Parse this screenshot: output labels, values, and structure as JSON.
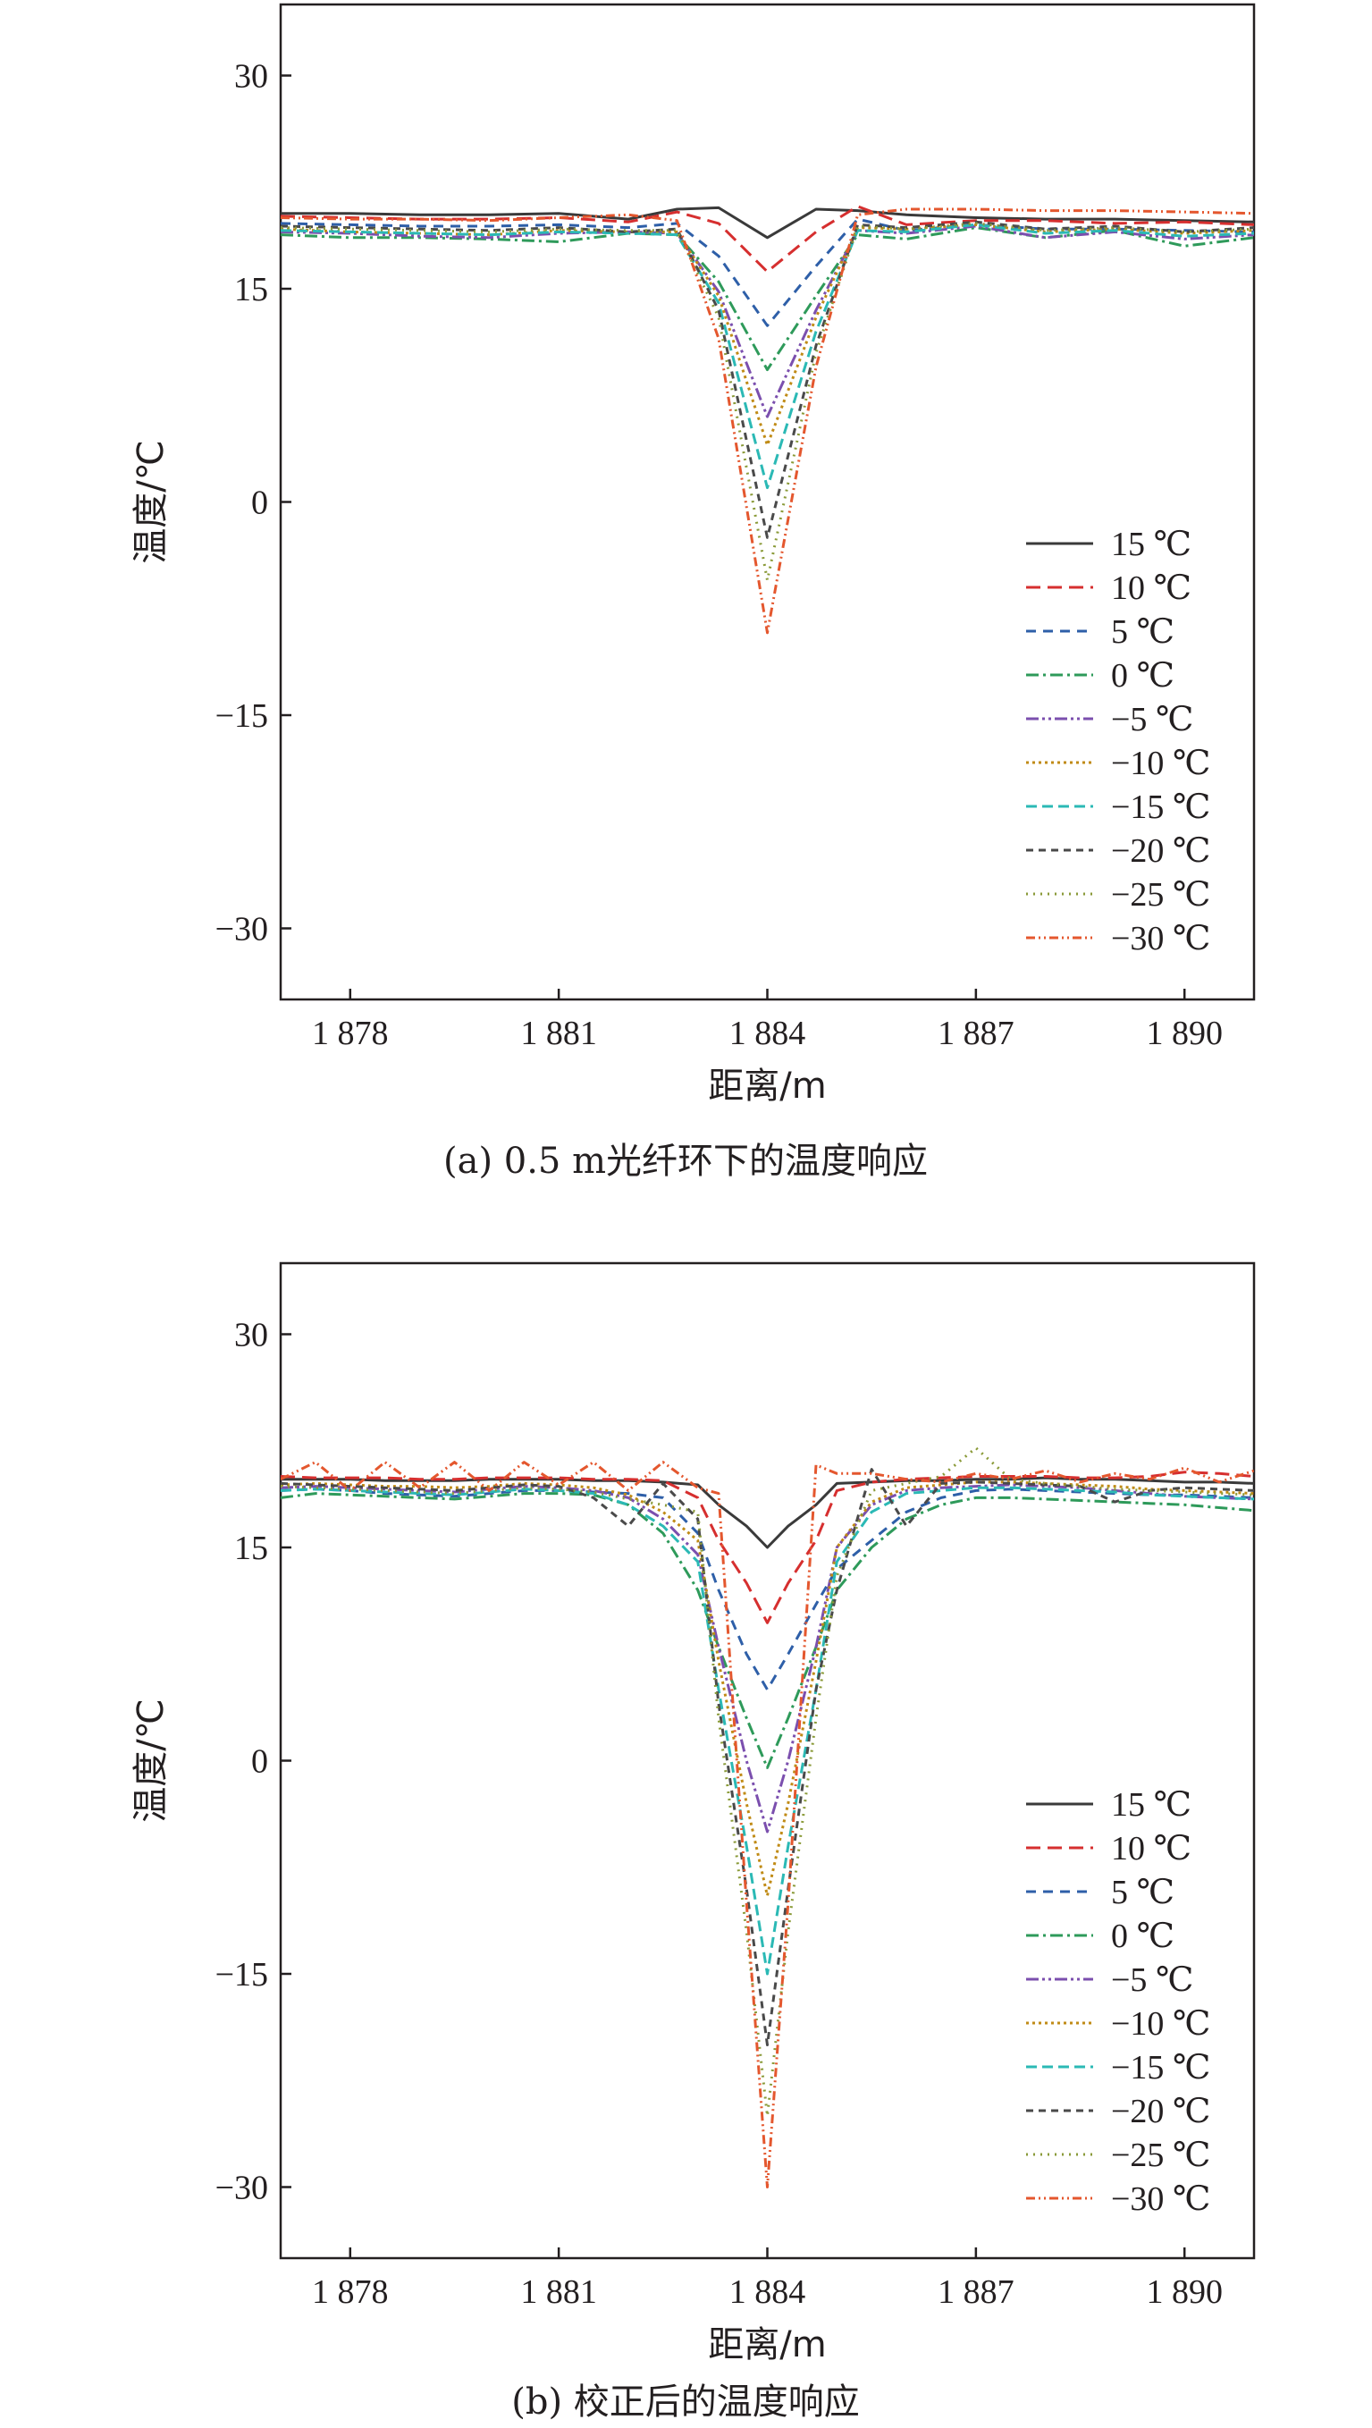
{
  "chart_data": [
    {
      "type": "line",
      "caption": "(a) 0.5 m光纤环下的温度响应",
      "xlabel": "距离/m",
      "ylabel": "温度/℃",
      "xlim": [
        1877,
        1891
      ],
      "ylim": [
        -35,
        35
      ],
      "xticks": [
        1878,
        1881,
        1884,
        1887,
        1890
      ],
      "xtick_labels": [
        "1 878",
        "1 881",
        "1 884",
        "1 887",
        "1 890"
      ],
      "yticks": [
        30,
        15,
        0,
        -15,
        -30
      ],
      "ytick_labels": [
        "30",
        "15",
        "0",
        "−15",
        "−30"
      ],
      "legend_position": "lower-right",
      "grid": false,
      "x": [
        1877,
        1878,
        1879,
        1880,
        1881,
        1882,
        1882.7,
        1883.3,
        1884,
        1884.7,
        1885.3,
        1886,
        1887,
        1888,
        1889,
        1890,
        1891
      ],
      "series": [
        {
          "name": "15 ℃",
          "color": "#3a3a3a",
          "dash": "",
          "values": [
            20.3,
            20.3,
            20.2,
            20.2,
            20.3,
            19.9,
            20.6,
            20.7,
            18.6,
            20.6,
            20.5,
            20.2,
            20.0,
            19.9,
            19.9,
            19.8,
            19.7
          ]
        },
        {
          "name": "10 ℃",
          "color": "#d62f2f",
          "dash": "16,8",
          "values": [
            20.1,
            20.0,
            19.9,
            19.9,
            20.0,
            19.7,
            20.4,
            19.6,
            16.2,
            19.0,
            20.8,
            19.5,
            19.8,
            19.8,
            19.6,
            19.7,
            19.5
          ]
        },
        {
          "name": "5 ℃",
          "color": "#2e5fa8",
          "dash": "11,8",
          "values": [
            19.6,
            19.5,
            19.4,
            19.4,
            19.5,
            19.3,
            19.6,
            17.3,
            12.4,
            16.6,
            19.9,
            19.1,
            19.5,
            19.2,
            19.2,
            19.1,
            19.0
          ]
        },
        {
          "name": "0 ℃",
          "color": "#2e9a5a",
          "dash": "14,5,3,5",
          "values": [
            18.8,
            18.6,
            18.6,
            18.5,
            18.3,
            18.9,
            18.8,
            15.5,
            9.3,
            14.5,
            18.8,
            18.5,
            19.3,
            18.6,
            19.1,
            18.0,
            18.6
          ]
        },
        {
          "name": "−5 ℃",
          "color": "#7b4fae",
          "dash": "14,4,3,4,3,4",
          "values": [
            19.0,
            18.9,
            18.7,
            18.6,
            18.9,
            19.0,
            18.9,
            14.8,
            6.0,
            13.5,
            19.1,
            18.9,
            19.4,
            18.6,
            19.0,
            18.5,
            18.8
          ]
        },
        {
          "name": "−10 ℃",
          "color": "#c08b16",
          "dash": "3,4",
          "values": [
            19.2,
            19.0,
            18.9,
            18.8,
            19.1,
            19.0,
            19.0,
            14.5,
            4.0,
            13.0,
            19.3,
            19.2,
            19.5,
            19.0,
            19.2,
            18.9,
            19.1
          ]
        },
        {
          "name": "−15 ℃",
          "color": "#2bb9b5",
          "dash": "12,6",
          "values": [
            19.1,
            19.0,
            18.9,
            18.8,
            19.0,
            18.9,
            18.8,
            14.0,
            1.0,
            12.0,
            19.1,
            19.0,
            19.5,
            18.9,
            19.1,
            18.7,
            18.9
          ]
        },
        {
          "name": "−20 ℃",
          "color": "#4a4a4a",
          "dash": "8,6",
          "values": [
            19.4,
            19.3,
            19.2,
            19.1,
            19.3,
            19.0,
            19.2,
            13.5,
            -2.5,
            11.0,
            19.5,
            19.3,
            19.7,
            19.2,
            19.4,
            19.0,
            19.3
          ]
        },
        {
          "name": "−25 ℃",
          "color": "#8a9a38",
          "dash": "2,6",
          "values": [
            19.3,
            19.2,
            19.1,
            19.0,
            19.2,
            19.1,
            19.1,
            13.0,
            -5.5,
            10.5,
            19.4,
            19.2,
            19.6,
            19.1,
            19.3,
            19.0,
            19.2
          ]
        },
        {
          "name": "−30 ℃",
          "color": "#e4572e",
          "dash": "10,4,2,4,2,4",
          "values": [
            20.0,
            19.9,
            19.9,
            19.8,
            20.0,
            20.2,
            19.8,
            11.5,
            -9.2,
            9.5,
            20.2,
            20.6,
            20.6,
            20.5,
            20.5,
            20.4,
            20.3
          ]
        }
      ]
    },
    {
      "type": "line",
      "caption": "(b) 校正后的温度响应",
      "xlabel": "距离/m",
      "ylabel": "温度/℃",
      "xlim": [
        1877,
        1891
      ],
      "ylim": [
        -35,
        35
      ],
      "xticks": [
        1878,
        1881,
        1884,
        1887,
        1890
      ],
      "xtick_labels": [
        "1 878",
        "1 881",
        "1 884",
        "1 887",
        "1 890"
      ],
      "yticks": [
        30,
        15,
        0,
        -15,
        -30
      ],
      "ytick_labels": [
        "30",
        "15",
        "0",
        "−15",
        "−30"
      ],
      "legend_position": "lower-right",
      "grid": false,
      "x": [
        1877,
        1877.5,
        1878,
        1878.5,
        1879,
        1879.5,
        1880,
        1880.5,
        1881,
        1881.5,
        1882,
        1882.5,
        1883,
        1883.3,
        1883.7,
        1884,
        1884.3,
        1884.7,
        1885,
        1885.5,
        1886,
        1886.5,
        1887,
        1887.5,
        1888,
        1888.5,
        1889,
        1889.5,
        1890,
        1890.5,
        1891
      ],
      "series": [
        {
          "name": "15 ℃",
          "color": "#3a3a3a",
          "dash": "",
          "values": [
            19.8,
            19.8,
            19.8,
            19.7,
            19.7,
            19.7,
            19.8,
            19.8,
            19.8,
            19.7,
            19.7,
            19.6,
            19.4,
            18.0,
            16.5,
            15.0,
            16.5,
            18.0,
            19.5,
            19.6,
            19.7,
            19.7,
            19.8,
            19.8,
            19.9,
            19.8,
            19.8,
            19.7,
            19.6,
            19.6,
            19.5
          ]
        },
        {
          "name": "10 ℃",
          "color": "#d62f2f",
          "dash": "16,8",
          "values": [
            20.0,
            19.9,
            19.9,
            19.9,
            19.8,
            19.8,
            19.9,
            19.9,
            19.9,
            19.8,
            19.8,
            19.7,
            18.5,
            15.5,
            12.5,
            9.7,
            12.5,
            15.5,
            19.0,
            19.6,
            19.8,
            19.9,
            20.0,
            20.0,
            20.0,
            19.9,
            19.9,
            20.0,
            20.3,
            20.2,
            20.0
          ]
        },
        {
          "name": "5 ℃",
          "color": "#2e5fa8",
          "dash": "11,8",
          "values": [
            19.0,
            19.1,
            19.0,
            18.8,
            18.7,
            18.6,
            18.8,
            19.0,
            19.0,
            18.9,
            18.8,
            18.5,
            16.0,
            12.0,
            7.5,
            5.0,
            7.5,
            11.0,
            13.5,
            15.5,
            17.5,
            18.5,
            19.0,
            19.1,
            19.0,
            18.9,
            18.8,
            18.7,
            18.7,
            18.6,
            18.5
          ]
        },
        {
          "name": "0 ℃",
          "color": "#2e9a5a",
          "dash": "14,5,3,5",
          "values": [
            18.5,
            18.8,
            18.7,
            18.6,
            18.5,
            18.4,
            18.6,
            18.8,
            18.8,
            18.7,
            18.0,
            16.0,
            12.0,
            8.0,
            3.0,
            -0.5,
            3.0,
            8.0,
            12.0,
            15.0,
            17.0,
            18.0,
            18.5,
            18.5,
            18.4,
            18.3,
            18.2,
            18.1,
            18.0,
            17.8,
            17.6
          ]
        },
        {
          "name": "−5 ℃",
          "color": "#7b4fae",
          "dash": "14,4,3,4,3,4",
          "values": [
            19.2,
            19.3,
            19.2,
            19.1,
            19.0,
            18.9,
            19.1,
            19.3,
            19.2,
            19.0,
            18.5,
            17.0,
            14.5,
            8.0,
            0.0,
            -5.0,
            0.0,
            8.0,
            15.0,
            18.0,
            19.0,
            19.2,
            19.3,
            19.4,
            19.3,
            19.2,
            19.0,
            18.8,
            18.6,
            18.5,
            18.4
          ]
        },
        {
          "name": "−10 ℃",
          "color": "#c08b16",
          "dash": "3,4",
          "values": [
            19.4,
            19.5,
            19.4,
            19.3,
            19.3,
            19.2,
            19.3,
            19.5,
            19.4,
            19.2,
            18.7,
            17.5,
            15.5,
            7.0,
            -3.0,
            -9.5,
            -3.0,
            7.0,
            15.0,
            18.2,
            19.2,
            19.4,
            19.6,
            19.6,
            19.5,
            19.4,
            19.3,
            19.1,
            19.0,
            18.9,
            18.8
          ]
        },
        {
          "name": "−15 ℃",
          "color": "#2bb9b5",
          "dash": "12,6",
          "values": [
            19.0,
            19.1,
            19.0,
            18.9,
            18.8,
            18.7,
            18.9,
            19.1,
            19.0,
            18.8,
            18.0,
            16.5,
            14.0,
            5.0,
            -6.0,
            -15.0,
            -6.0,
            5.0,
            14.0,
            17.5,
            18.8,
            19.0,
            19.2,
            19.2,
            19.1,
            19.0,
            18.9,
            18.7,
            18.6,
            18.5,
            18.4
          ]
        },
        {
          "name": "−20 ℃",
          "color": "#4a4a4a",
          "dash": "8,6",
          "values": [
            19.5,
            19.4,
            19.3,
            19.2,
            19.1,
            19.0,
            19.2,
            19.4,
            19.3,
            18.5,
            16.5,
            19.5,
            17.0,
            4.0,
            -9.0,
            -20.0,
            -9.0,
            5.0,
            12.0,
            20.5,
            16.5,
            19.5,
            19.6,
            19.5,
            19.4,
            19.3,
            18.2,
            19.0,
            19.2,
            19.1,
            19.0
          ]
        },
        {
          "name": "−25 ℃",
          "color": "#8a9a38",
          "dash": "2,6",
          "values": [
            19.3,
            19.2,
            19.1,
            19.0,
            18.9,
            18.8,
            19.0,
            19.2,
            19.1,
            18.9,
            18.4,
            18.0,
            17.5,
            3.0,
            -12.0,
            -25.0,
            -12.0,
            3.0,
            13.0,
            19.0,
            19.5,
            20.0,
            22.0,
            19.8,
            19.5,
            19.3,
            19.1,
            19.0,
            18.9,
            18.8,
            18.7
          ]
        },
        {
          "name": "−30 ℃",
          "color": "#e4572e",
          "dash": "10,4,2,4,2,4",
          "values": [
            19.8,
            21.0,
            19.0,
            21.0,
            19.2,
            21.0,
            19.0,
            21.0,
            19.4,
            21.0,
            19.0,
            21.0,
            19.2,
            18.8,
            -10.0,
            -30.0,
            -10.0,
            20.8,
            20.2,
            20.2,
            19.8,
            19.6,
            20.2,
            19.8,
            20.4,
            19.6,
            20.2,
            19.8,
            20.6,
            19.6,
            20.4
          ]
        }
      ]
    }
  ]
}
